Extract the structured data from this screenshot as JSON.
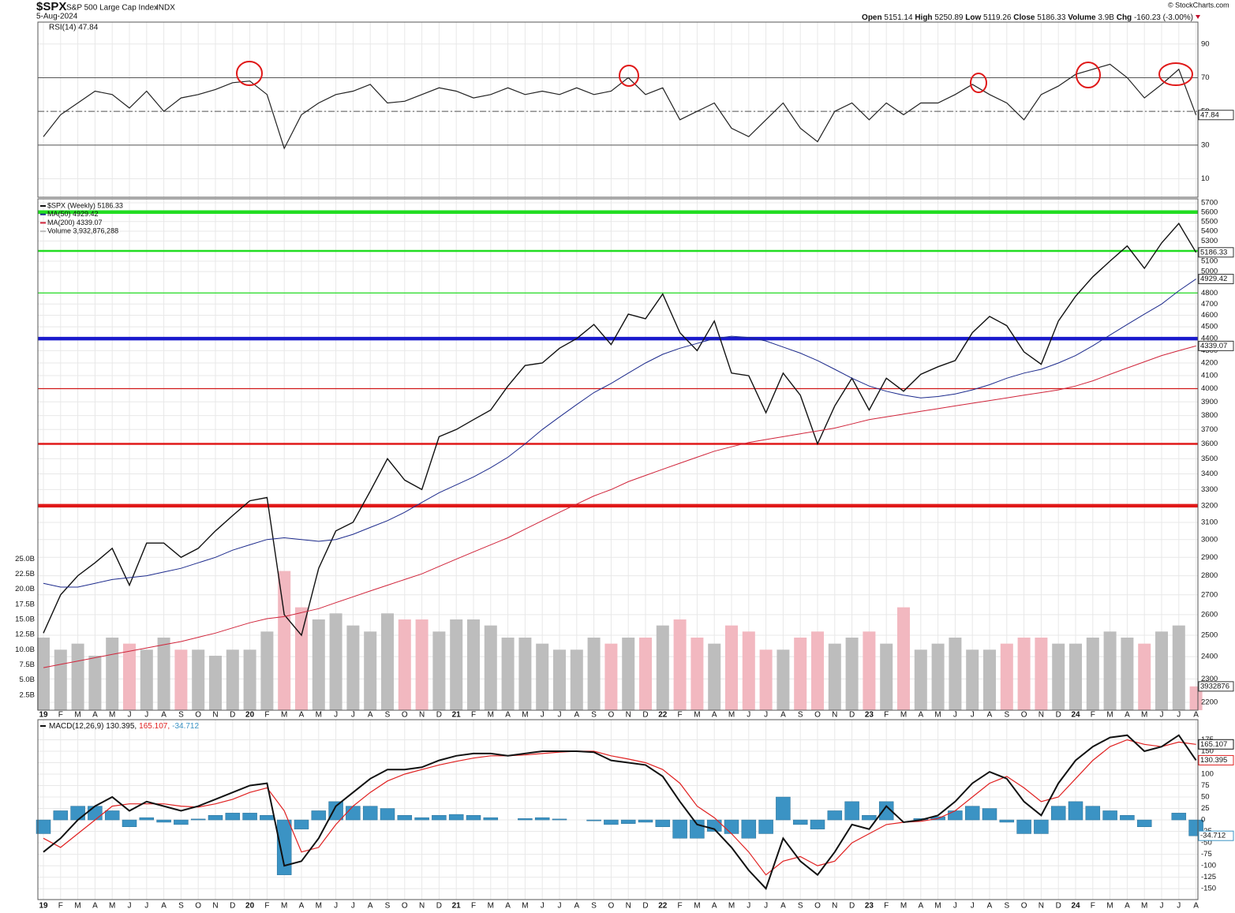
{
  "header": {
    "symbol": "$SPX",
    "name": "S&P 500 Large Cap Index",
    "exchange": "INDX",
    "date": "5-Aug-2024",
    "ohlc": [
      {
        "label": "Open",
        "value": "5151.14"
      },
      {
        "label": "High",
        "value": "5250.89"
      },
      {
        "label": "Low",
        "value": "5119.26"
      },
      {
        "label": "Close",
        "value": "5186.33"
      },
      {
        "label": "Volume",
        "value": "3.9B"
      },
      {
        "label": "Chg",
        "value": "-160.23 (-3.00%)"
      }
    ],
    "credit": "© StockCharts.com"
  },
  "chart_data": [
    {
      "type": "line",
      "legend": "RSI(14) 47.84",
      "ylim": [
        -1,
        103
      ],
      "yticks": [
        90,
        70,
        50,
        30,
        10
      ],
      "reference_lines": [
        70,
        50,
        30
      ],
      "grid": true,
      "tag": {
        "value": 47.84,
        "label": "47.84"
      },
      "series": [
        {
          "color": "#222222",
          "values": [
            35,
            48,
            55,
            62,
            60,
            52,
            62,
            50,
            58,
            60,
            63,
            67,
            68,
            60,
            28,
            48,
            55,
            60,
            62,
            66,
            55,
            56,
            60,
            64,
            62,
            58,
            60,
            64,
            60,
            62,
            60,
            64,
            60,
            62,
            70,
            60,
            64,
            45,
            50,
            55,
            40,
            35,
            45,
            55,
            40,
            32,
            50,
            55,
            45,
            55,
            48,
            55,
            55,
            60,
            66,
            60,
            55,
            45,
            60,
            65,
            72,
            75,
            78,
            70,
            58,
            66,
            75,
            47.84
          ]
        }
      ]
    },
    {
      "type": "stock",
      "log": true,
      "grid": true,
      "ylim": [
        2167,
        5743
      ],
      "categories": [
        "19",
        "F",
        "M",
        "A",
        "M",
        "J",
        "J",
        "A",
        "S",
        "O",
        "N",
        "D",
        "20",
        "F",
        "M",
        "A",
        "M",
        "J",
        "J",
        "A",
        "S",
        "O",
        "N",
        "D",
        "21",
        "F",
        "M",
        "A",
        "M",
        "J",
        "J",
        "A",
        "S",
        "O",
        "N",
        "D",
        "22",
        "F",
        "M",
        "A",
        "M",
        "J",
        "J",
        "A",
        "S",
        "O",
        "N",
        "D",
        "23",
        "F",
        "M",
        "A",
        "M",
        "J",
        "J",
        "A",
        "S",
        "O",
        "N",
        "D",
        "24",
        "F",
        "M",
        "A",
        "M",
        "J",
        "J",
        "A"
      ],
      "yticks": [
        5700,
        5600,
        5500,
        5400,
        5300,
        5100,
        5000,
        4800,
        4700,
        4600,
        4500,
        4400,
        4300,
        4200,
        4100,
        4000,
        3900,
        3800,
        3700,
        3600,
        3500,
        3400,
        3300,
        3200,
        3100,
        3000,
        2900,
        2800,
        2700,
        2600,
        2500,
        2400,
        2300,
        2200
      ],
      "legend": [
        "$SPX (Weekly) 5186.33",
        "MA(50) 4929.42",
        "MA(200) 4339.07",
        "Volume 3,932,876,288"
      ],
      "series": [
        {
          "color": "#111111",
          "values": [
            2510,
            2700,
            2800,
            2870,
            2950,
            2750,
            2980,
            2980,
            2900,
            2950,
            3050,
            3140,
            3230,
            3250,
            2600,
            2500,
            2840,
            3050,
            3100,
            3290,
            3500,
            3360,
            3300,
            3650,
            3700,
            3770,
            3840,
            4020,
            4180,
            4200,
            4320,
            4400,
            4520,
            4350,
            4610,
            4570,
            4790,
            4450,
            4300,
            4550,
            4120,
            4100,
            3820,
            4120,
            3950,
            3600,
            3870,
            4080,
            3840,
            4080,
            3980,
            4110,
            4170,
            4220,
            4450,
            4590,
            4510,
            4290,
            4190,
            4550,
            4770,
            4950,
            5100,
            5250,
            5030,
            5280,
            5480,
            5186.33
          ]
        },
        {
          "color": "#1c2a8c",
          "values": [
            2760,
            2740,
            2740,
            2760,
            2780,
            2790,
            2800,
            2820,
            2840,
            2870,
            2900,
            2940,
            2970,
            3000,
            3010,
            3000,
            2990,
            3000,
            3030,
            3070,
            3110,
            3160,
            3220,
            3280,
            3330,
            3380,
            3440,
            3510,
            3600,
            3700,
            3790,
            3880,
            3970,
            4040,
            4120,
            4200,
            4270,
            4320,
            4360,
            4400,
            4420,
            4410,
            4380,
            4330,
            4280,
            4220,
            4150,
            4080,
            4020,
            3980,
            3950,
            3930,
            3940,
            3960,
            3990,
            4030,
            4080,
            4120,
            4150,
            4200,
            4260,
            4340,
            4430,
            4520,
            4610,
            4700,
            4820,
            4929.42
          ]
        },
        {
          "color": "#d0243a",
          "values": [
            2350,
            2365,
            2380,
            2395,
            2410,
            2425,
            2440,
            2455,
            2470,
            2490,
            2510,
            2535,
            2560,
            2580,
            2590,
            2610,
            2630,
            2660,
            2690,
            2720,
            2750,
            2780,
            2810,
            2850,
            2890,
            2930,
            2970,
            3010,
            3060,
            3110,
            3160,
            3210,
            3260,
            3300,
            3350,
            3390,
            3430,
            3470,
            3510,
            3550,
            3580,
            3610,
            3630,
            3650,
            3670,
            3690,
            3710,
            3740,
            3770,
            3790,
            3810,
            3830,
            3850,
            3870,
            3890,
            3910,
            3930,
            3950,
            3970,
            3990,
            4020,
            4060,
            4110,
            4160,
            4210,
            4260,
            4300,
            4339.07
          ]
        }
      ],
      "tags": [
        {
          "value": 5186.33,
          "label": "5186.33"
        },
        {
          "value": 4929.42,
          "label": "4929.42"
        },
        {
          "value": 4339.07,
          "label": "4339.07"
        }
      ],
      "levels": [
        {
          "value": 5600,
          "color": "#22dd22",
          "weight": "thick"
        },
        {
          "value": 5200,
          "color": "#22dd22",
          "weight": "medium"
        },
        {
          "value": 4800,
          "color": "#22dd22",
          "weight": "thin"
        },
        {
          "value": 4400,
          "color": "#1a1acc",
          "weight": "thick"
        },
        {
          "value": 4000,
          "color": "#d01818",
          "weight": "thin"
        },
        {
          "value": 3600,
          "color": "#e01818",
          "weight": "medium"
        },
        {
          "value": 3200,
          "color": "#e01818",
          "weight": "thick"
        }
      ],
      "volume": {
        "ylim": [
          0,
          84.5
        ],
        "up_color": "#bdbdbd",
        "down_color": "#f2b8c0",
        "yticks": [
          {
            "value": 25,
            "label": "25.0B"
          },
          {
            "value": 22.5,
            "label": "22.5B"
          },
          {
            "value": 20,
            "label": "20.0B"
          },
          {
            "value": 17.5,
            "label": "17.5B"
          },
          {
            "value": 15,
            "label": "15.0B"
          },
          {
            "value": 12.5,
            "label": "12.5B"
          },
          {
            "value": 10,
            "label": "10.0B"
          },
          {
            "value": 7.5,
            "label": "7.5B"
          },
          {
            "value": 5,
            "label": "5.0B"
          },
          {
            "value": 2.5,
            "label": "2.5B"
          }
        ],
        "tag": {
          "value": 3.932876,
          "label": "3932876"
        },
        "values": [
          12,
          10,
          11,
          9,
          12,
          11,
          10,
          12,
          10,
          10,
          9,
          10,
          10,
          13,
          23,
          17,
          15,
          16,
          14,
          13,
          16,
          15,
          15,
          13,
          15,
          15,
          14,
          12,
          12,
          11,
          10,
          10,
          12,
          11,
          12,
          12,
          14,
          15,
          12,
          11,
          14,
          13,
          10,
          10,
          12,
          13,
          11,
          12,
          13,
          11,
          17,
          10,
          11,
          12,
          10,
          10,
          11,
          12,
          12,
          11,
          11,
          12,
          13,
          12,
          11,
          13,
          14,
          3.93
        ]
      }
    },
    {
      "type": "macd",
      "grid": true,
      "ylim": [
        -174,
        219
      ],
      "categories": [
        "19",
        "F",
        "M",
        "A",
        "M",
        "J",
        "J",
        "A",
        "S",
        "O",
        "N",
        "D",
        "20",
        "F",
        "M",
        "A",
        "M",
        "J",
        "J",
        "A",
        "S",
        "O",
        "N",
        "D",
        "21",
        "F",
        "M",
        "A",
        "M",
        "J",
        "J",
        "A",
        "S",
        "O",
        "N",
        "D",
        "22",
        "F",
        "M",
        "A",
        "M",
        "J",
        "J",
        "A",
        "S",
        "O",
        "N",
        "D",
        "23",
        "F",
        "M",
        "A",
        "M",
        "J",
        "J",
        "A",
        "S",
        "O",
        "N",
        "D",
        "24",
        "F",
        "M",
        "A",
        "M",
        "J",
        "J",
        "A"
      ],
      "yticks": [
        175,
        150,
        125,
        100,
        75,
        50,
        25,
        0,
        -25,
        -50,
        -75,
        -100,
        -125,
        -150
      ],
      "legend": [
        "MACD(12,26,9) 130.395,",
        "165.107,",
        "-34.712"
      ],
      "tags": [
        {
          "value": 165.107,
          "label": "165.107"
        },
        {
          "value": 130.395,
          "label": "130.395"
        },
        {
          "value": -34.712,
          "label": "-34.712"
        }
      ],
      "series": [
        {
          "color": "#111111",
          "values": [
            -70,
            -40,
            0,
            30,
            50,
            20,
            40,
            30,
            20,
            30,
            45,
            60,
            75,
            80,
            -100,
            -90,
            -40,
            30,
            60,
            90,
            110,
            110,
            115,
            130,
            140,
            145,
            145,
            140,
            145,
            150,
            150,
            150,
            148,
            130,
            125,
            120,
            95,
            40,
            -10,
            -20,
            -60,
            -110,
            -150,
            -40,
            -90,
            -120,
            -70,
            -10,
            -20,
            30,
            -5,
            0,
            10,
            40,
            80,
            105,
            90,
            40,
            10,
            80,
            130,
            160,
            180,
            185,
            150,
            160,
            185,
            130.395
          ]
        },
        {
          "color": "#e02020",
          "values": [
            -40,
            -60,
            -30,
            0,
            30,
            35,
            35,
            35,
            30,
            28,
            35,
            45,
            60,
            70,
            20,
            -70,
            -60,
            -10,
            30,
            60,
            85,
            100,
            110,
            120,
            128,
            135,
            140,
            140,
            142,
            145,
            148,
            150,
            150,
            140,
            133,
            125,
            110,
            80,
            30,
            5,
            -30,
            -70,
            -120,
            -90,
            -80,
            -100,
            -90,
            -50,
            -30,
            -10,
            -5,
            -3,
            3,
            20,
            50,
            80,
            95,
            70,
            40,
            50,
            90,
            130,
            160,
            175,
            165,
            160,
            170,
            165.107
          ]
        },
        {
          "color": "#3b93c4",
          "values": [
            -30,
            20,
            30,
            30,
            20,
            -15,
            5,
            -5,
            -10,
            2,
            10,
            15,
            15,
            10,
            -120,
            -20,
            20,
            40,
            30,
            30,
            25,
            10,
            5,
            10,
            12,
            10,
            5,
            0,
            3,
            5,
            2,
            0,
            -2,
            -10,
            -8,
            -5,
            -15,
            -40,
            -40,
            -25,
            -30,
            -40,
            -30,
            50,
            -10,
            -20,
            20,
            40,
            10,
            40,
            0,
            3,
            7,
            20,
            30,
            25,
            -5,
            -30,
            -30,
            30,
            40,
            30,
            20,
            10,
            -15,
            0,
            15,
            -34.712
          ]
        }
      ]
    }
  ]
}
